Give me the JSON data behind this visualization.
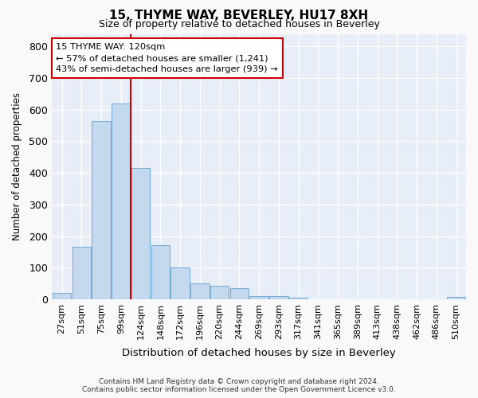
{
  "title": "15, THYME WAY, BEVERLEY, HU17 8XH",
  "subtitle": "Size of property relative to detached houses in Beverley",
  "xlabel": "Distribution of detached houses by size in Beverley",
  "ylabel": "Number of detached properties",
  "bar_color": "#c5d9ee",
  "bar_edge_color": "#7aaed6",
  "background_color": "#e8eef8",
  "grid_color": "#ffffff",
  "vline_color": "#cc0000",
  "vline_x_idx": 4,
  "annotation_line1": "15 THYME WAY: 120sqm",
  "annotation_line2": "← 57% of detached houses are smaller (1,241)",
  "annotation_line3": "43% of semi-detached houses are larger (939) →",
  "annotation_box_color": "#ffffff",
  "annotation_box_edge": "#cc0000",
  "categories": [
    "27sqm",
    "51sqm",
    "75sqm",
    "99sqm",
    "124sqm",
    "148sqm",
    "172sqm",
    "196sqm",
    "220sqm",
    "244sqm",
    "269sqm",
    "293sqm",
    "317sqm",
    "341sqm",
    "365sqm",
    "389sqm",
    "413sqm",
    "438sqm",
    "462sqm",
    "486sqm",
    "510sqm"
  ],
  "values": [
    20,
    165,
    565,
    620,
    415,
    170,
    100,
    50,
    42,
    35,
    10,
    10,
    5,
    0,
    0,
    0,
    0,
    0,
    0,
    0,
    8
  ],
  "ylim": [
    0,
    840
  ],
  "yticks": [
    0,
    100,
    200,
    300,
    400,
    500,
    600,
    700,
    800
  ],
  "fig_bgcolor": "#f9f9f9",
  "footnote": "Contains HM Land Registry data © Crown copyright and database right 2024.\nContains public sector information licensed under the Open Government Licence v3.0."
}
